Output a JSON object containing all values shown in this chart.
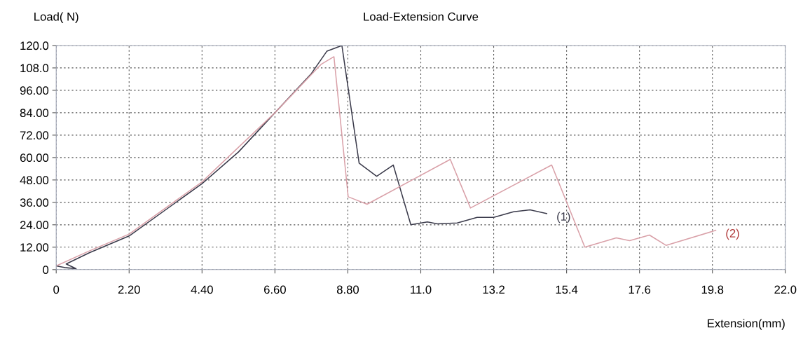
{
  "chart_data": {
    "type": "line",
    "title": "Load-Extension Curve",
    "xlabel": "Extension(mm)",
    "ylabel": "Load( N)",
    "xlim": [
      0,
      22.0
    ],
    "ylim": [
      0,
      120.0
    ],
    "xticks": [
      0,
      {
        "value": 2.2,
        "label": "2.20"
      },
      {
        "value": 4.4,
        "label": "4.40"
      },
      {
        "value": 6.6,
        "label": "6.60"
      },
      {
        "value": 8.8,
        "label": "8.80"
      },
      {
        "value": 11.0,
        "label": "11.0"
      },
      {
        "value": 13.2,
        "label": "13.2"
      },
      {
        "value": 15.4,
        "label": "15.4"
      },
      {
        "value": 17.6,
        "label": "17.6"
      },
      {
        "value": 19.8,
        "label": "19.8"
      },
      {
        "value": 22.0,
        "label": "22.0"
      }
    ],
    "yticks": [
      0,
      {
        "value": 12,
        "label": "12.00"
      },
      {
        "value": 24,
        "label": "24.00"
      },
      {
        "value": 36,
        "label": "36.00"
      },
      {
        "value": 48,
        "label": "48.00"
      },
      {
        "value": 60,
        "label": "60.00"
      },
      {
        "value": 72,
        "label": "72.00"
      },
      {
        "value": 84,
        "label": "84.00"
      },
      {
        "value": 96,
        "label": "96.00"
      },
      {
        "value": 108,
        "label": "108.0"
      },
      {
        "value": 120,
        "label": "120.0"
      }
    ],
    "grid": true,
    "line_style": "solid",
    "marker": "none",
    "series": [
      {
        "name": "(1)",
        "color": "#3a3a4a",
        "x": [
          0,
          0.3,
          0.6,
          0.3,
          1.0,
          2.2,
          3.3,
          4.4,
          5.5,
          6.6,
          7.7,
          8.17,
          8.62,
          9.14,
          9.67,
          10.17,
          10.7,
          11.2,
          11.5,
          12.1,
          12.7,
          13.2,
          13.8,
          14.3,
          14.8
        ],
        "values": [
          2,
          1,
          0.5,
          3,
          9,
          18,
          32,
          46,
          63,
          84,
          105,
          117,
          120,
          57,
          50,
          56,
          24,
          25.5,
          24.5,
          25,
          28,
          28,
          31,
          32,
          30
        ]
      },
      {
        "name": "(2)",
        "color": "#d9a0a8",
        "x": [
          0,
          1.0,
          2.2,
          4.4,
          6.6,
          8.0,
          8.38,
          8.81,
          9.38,
          11.89,
          12.5,
          14.95,
          15.95,
          16.9,
          17.3,
          17.9,
          18.4,
          19.9
        ],
        "values": [
          2,
          10,
          19,
          47,
          84,
          110,
          114,
          39,
          35,
          59,
          33,
          56,
          12,
          17,
          15.5,
          18.5,
          13,
          21
        ]
      }
    ]
  }
}
